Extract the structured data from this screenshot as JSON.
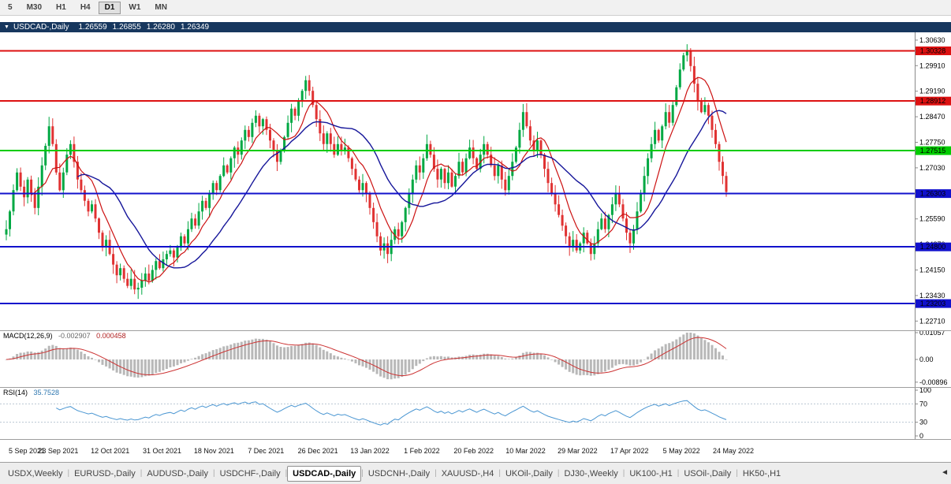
{
  "toolbar": {
    "timeframes": [
      "5",
      "M30",
      "H1",
      "H4",
      "D1",
      "W1",
      "MN"
    ],
    "active_timeframe": "D1"
  },
  "chart_header": {
    "collapse_glyph": "▼",
    "symbol": "USDCAD-,Daily",
    "open": "1.26559",
    "high": "1.26855",
    "low": "1.26280",
    "close": "1.26349"
  },
  "price_axis": {
    "ticks": [
      "1.30630",
      "1.29910",
      "1.29190",
      "1.28470",
      "1.27750",
      "1.27030",
      "1.26310",
      "1.25590",
      "1.24870",
      "1.24150",
      "1.23430",
      "1.22710"
    ]
  },
  "levels": [
    {
      "label": "1.30328",
      "value": 1.30328,
      "color": "#dd1111"
    },
    {
      "label": "1.28912",
      "value": 1.28912,
      "color": "#dd1111"
    },
    {
      "label": "1.27515",
      "value": 1.27515,
      "color": "#00cc00"
    },
    {
      "label": "1.26303",
      "value": 1.26303,
      "color": "#1111cc"
    },
    {
      "label": "1.24800",
      "value": 1.248,
      "color": "#1111cc"
    },
    {
      "label": "1.23203",
      "value": 1.23203,
      "color": "#1111cc"
    }
  ],
  "indicators": {
    "macd": {
      "label": "MACD(12,26,9)",
      "value1": "-0.002907",
      "value2": "0.000458",
      "axis": [
        {
          "label": "0.01057",
          "value": 0.01057
        },
        {
          "label": "0.00",
          "value": 0
        },
        {
          "label": "-0.00896",
          "value": -0.00896
        }
      ]
    },
    "rsi": {
      "label": "RSI(14)",
      "value": "35.7528",
      "axis": [
        {
          "label": "100",
          "value": 100
        },
        {
          "label": "70",
          "value": 70
        },
        {
          "label": "30",
          "value": 30
        },
        {
          "label": "0",
          "value": 0
        }
      ],
      "levels": [
        70,
        30
      ]
    }
  },
  "time_axis": {
    "labels": [
      "5 Sep 2021",
      "23 Sep 2021",
      "12 Oct 2021",
      "31 Oct 2021",
      "18 Nov 2021",
      "7 Dec 2021",
      "26 Dec 2021",
      "13 Jan 2022",
      "1 Feb 2022",
      "20 Feb 2022",
      "10 Mar 2022",
      "29 Mar 2022",
      "17 Apr 2022",
      "5 May 2022",
      "24 May 2022"
    ]
  },
  "tabs": {
    "items": [
      "USDX,Weekly",
      "EURUSD-,Daily",
      "AUDUSD-,Daily",
      "USDCHF-,Daily",
      "USDCAD-,Daily",
      "USDCNH-,Daily",
      "XAUUSD-,H4",
      "UKOil-,Daily",
      "DJ30-,Weekly",
      "UK100-,H1",
      "USOil-,Daily",
      "HK50-,H1"
    ],
    "active": "USDCAD-,Daily",
    "scroll_left_glyph": "◄"
  },
  "chart_data": {
    "type": "candlestick",
    "symbol": "USDCAD",
    "timeframe": "Daily",
    "title": "USDCAD-,Daily",
    "ohlc_current": [
      1.26559,
      1.26855,
      1.2628,
      1.26349
    ],
    "y_range": [
      1.2245,
      1.3085
    ],
    "horizontal_levels": [
      1.30328,
      1.28912,
      1.27515,
      1.26303,
      1.248,
      1.23203
    ],
    "closes": [
      1.253,
      1.258,
      1.264,
      1.269,
      1.265,
      1.262,
      1.267,
      1.263,
      1.259,
      1.265,
      1.271,
      1.2765,
      1.282,
      1.277,
      1.269,
      1.264,
      1.269,
      1.274,
      1.277,
      1.272,
      1.267,
      1.264,
      1.261,
      1.258,
      1.26,
      1.256,
      1.252,
      1.248,
      1.25,
      1.246,
      1.243,
      1.24,
      1.242,
      1.239,
      1.237,
      1.239,
      1.236,
      1.2365,
      1.2385,
      1.2405,
      1.2385,
      1.2415,
      1.244,
      1.242,
      1.2445,
      1.246,
      1.247,
      1.245,
      1.248,
      1.251,
      1.249,
      1.253,
      1.256,
      1.254,
      1.258,
      1.261,
      1.259,
      1.263,
      1.266,
      1.264,
      1.268,
      1.271,
      1.269,
      1.273,
      1.276,
      1.274,
      1.278,
      1.281,
      1.279,
      1.283,
      1.285,
      1.282,
      1.284,
      1.281,
      1.278,
      1.275,
      1.272,
      1.275,
      1.279,
      1.283,
      1.287,
      1.285,
      1.289,
      1.292,
      1.295,
      1.292,
      1.288,
      1.284,
      1.28,
      1.277,
      1.28,
      1.277,
      1.274,
      1.277,
      1.275,
      1.276,
      1.273,
      1.27,
      1.267,
      1.264,
      1.266,
      1.263,
      1.259,
      1.255,
      1.251,
      1.247,
      1.249,
      1.246,
      1.25,
      1.253,
      1.251,
      1.255,
      1.259,
      1.263,
      1.267,
      1.271,
      1.269,
      1.273,
      1.277,
      1.274,
      1.27,
      1.267,
      1.27,
      1.266,
      1.269,
      1.265,
      1.268,
      1.272,
      1.269,
      1.273,
      1.276,
      1.273,
      1.27,
      1.274,
      1.277,
      1.274,
      1.271,
      1.268,
      1.271,
      1.267,
      1.264,
      1.268,
      1.272,
      1.276,
      1.281,
      1.286,
      1.282,
      1.278,
      1.275,
      1.278,
      1.274,
      1.27,
      1.266,
      1.263,
      1.26,
      1.257,
      1.254,
      1.251,
      1.248,
      1.25,
      1.247,
      1.249,
      1.252,
      1.249,
      1.246,
      1.249,
      1.253,
      1.256,
      1.253,
      1.257,
      1.26,
      1.263,
      1.26,
      1.256,
      1.252,
      1.249,
      1.253,
      1.258,
      1.263,
      1.268,
      1.273,
      1.277,
      1.281,
      1.278,
      1.282,
      1.286,
      1.283,
      1.288,
      1.293,
      1.298,
      1.302,
      1.3035,
      1.299,
      1.294,
      1.289,
      1.286,
      1.288,
      1.285,
      1.281,
      1.277,
      1.272,
      1.268,
      1.26349
    ],
    "colors": {
      "up": "#00a843",
      "down": "#e03232",
      "ma_fast": "#cc1111",
      "ma_slow": "#16169a",
      "macd_hist": "#b8b8b8",
      "macd_signal": "#cc3333",
      "rsi_line": "#4a96d2",
      "titlebar_bg": "#17375e"
    }
  }
}
